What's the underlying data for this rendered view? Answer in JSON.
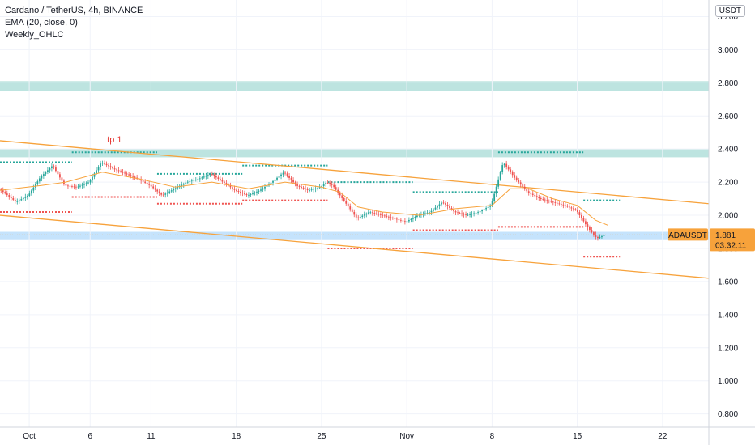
{
  "legend": {
    "title": "Cardano / TetherUS, 4h, BINANCE",
    "indicator_ema": "EMA (20, close, 0)",
    "indicator_weekly": "Weekly_OHLC"
  },
  "currency": "USDT",
  "chart_data": {
    "type": "candlestick",
    "symbol": "ADAUSDT",
    "price_axis": {
      "ticks": [
        "3.200",
        "3.000",
        "2.800",
        "2.600",
        "2.400",
        "2.200",
        "2.000",
        "1.800",
        "1.600",
        "1.400",
        "1.200",
        "1.000",
        "0.800"
      ],
      "range": [
        0.72,
        3.3
      ]
    },
    "time_axis": {
      "ticks": [
        {
          "label": "Oct",
          "day": 1
        },
        {
          "label": "6",
          "day": 6
        },
        {
          "label": "11",
          "day": 11
        },
        {
          "label": "18",
          "day": 18
        },
        {
          "label": "25",
          "day": 25
        },
        {
          "label": "Nov",
          "day": 32
        },
        {
          "label": "8",
          "day": 39
        },
        {
          "label": "15",
          "day": 46
        },
        {
          "label": "22",
          "day": 53
        }
      ],
      "range": [
        -1.4,
        56.8
      ]
    },
    "last_price": {
      "symbol": "ADAUSDT",
      "value": "1.881",
      "countdown": "03:32:11",
      "price": 1.881,
      "color": "#f7a23b"
    },
    "zones": [
      {
        "from": 2.75,
        "to": 2.81,
        "color": "#b2dfdb"
      },
      {
        "from": 2.35,
        "to": 2.4,
        "color": "#b2dfdb"
      },
      {
        "from": 1.85,
        "to": 1.9,
        "color": "#bbdefb"
      }
    ],
    "trendlines": [
      {
        "from": {
          "day": -1.4,
          "price": 2.45
        },
        "to": {
          "day": 56.8,
          "price": 2.07
        },
        "color": "#f7a23b"
      },
      {
        "from": {
          "day": -1.4,
          "price": 2.0
        },
        "to": {
          "day": 56.8,
          "price": 1.62
        },
        "color": "#f7a23b"
      }
    ],
    "weekly_levels": [
      {
        "from": -1.4,
        "to": 4.5,
        "price": 2.32,
        "kind": "high"
      },
      {
        "from": -1.4,
        "to": 4.5,
        "price": 2.02,
        "kind": "low"
      },
      {
        "from": 4.5,
        "to": 11.5,
        "price": 2.38,
        "kind": "high"
      },
      {
        "from": 4.5,
        "to": 11.5,
        "price": 2.11,
        "kind": "low"
      },
      {
        "from": 11.5,
        "to": 18.5,
        "price": 2.25,
        "kind": "high"
      },
      {
        "from": 11.5,
        "to": 18.5,
        "price": 2.07,
        "kind": "low"
      },
      {
        "from": 18.5,
        "to": 25.5,
        "price": 2.3,
        "kind": "high"
      },
      {
        "from": 18.5,
        "to": 25.5,
        "price": 2.09,
        "kind": "low"
      },
      {
        "from": 25.5,
        "to": 32.5,
        "price": 2.2,
        "kind": "high"
      },
      {
        "from": 25.5,
        "to": 32.5,
        "price": 1.8,
        "kind": "low"
      },
      {
        "from": 32.5,
        "to": 39.5,
        "price": 2.14,
        "kind": "high"
      },
      {
        "from": 32.5,
        "to": 39.5,
        "price": 1.91,
        "kind": "low"
      },
      {
        "from": 39.5,
        "to": 46.5,
        "price": 2.38,
        "kind": "high"
      },
      {
        "from": 39.5,
        "to": 46.5,
        "price": 1.93,
        "kind": "low"
      },
      {
        "from": 46.5,
        "to": 49.5,
        "price": 2.09,
        "kind": "high"
      },
      {
        "from": 46.5,
        "to": 49.5,
        "price": 1.75,
        "kind": "low"
      }
    ],
    "annotations": [
      {
        "text": "tp 1",
        "day": 8,
        "price": 2.44
      }
    ],
    "candles_path": [
      [
        -1.4,
        2.16
      ],
      [
        0.0,
        2.08
      ],
      [
        1.0,
        2.12
      ],
      [
        2.0,
        2.23
      ],
      [
        3.0,
        2.3
      ],
      [
        4.0,
        2.18
      ],
      [
        5.0,
        2.17
      ],
      [
        6.0,
        2.2
      ],
      [
        7.0,
        2.32
      ],
      [
        8.0,
        2.28
      ],
      [
        9.0,
        2.25
      ],
      [
        10.0,
        2.22
      ],
      [
        11.0,
        2.18
      ],
      [
        12.0,
        2.12
      ],
      [
        13.0,
        2.16
      ],
      [
        14.0,
        2.2
      ],
      [
        15.0,
        2.22
      ],
      [
        16.0,
        2.25
      ],
      [
        17.0,
        2.2
      ],
      [
        18.0,
        2.15
      ],
      [
        19.0,
        2.12
      ],
      [
        20.0,
        2.15
      ],
      [
        21.0,
        2.2
      ],
      [
        22.0,
        2.26
      ],
      [
        23.0,
        2.18
      ],
      [
        24.0,
        2.15
      ],
      [
        25.0,
        2.17
      ],
      [
        25.5,
        2.2
      ],
      [
        26.0,
        2.18
      ],
      [
        27.0,
        2.08
      ],
      [
        28.0,
        1.98
      ],
      [
        29.0,
        2.02
      ],
      [
        30.0,
        2.0
      ],
      [
        31.0,
        1.98
      ],
      [
        32.0,
        1.96
      ],
      [
        33.0,
        2.0
      ],
      [
        34.0,
        2.02
      ],
      [
        35.0,
        2.08
      ],
      [
        36.0,
        2.02
      ],
      [
        37.0,
        2.0
      ],
      [
        38.0,
        2.02
      ],
      [
        39.0,
        2.06
      ],
      [
        40.0,
        2.32
      ],
      [
        41.0,
        2.22
      ],
      [
        42.0,
        2.14
      ],
      [
        43.0,
        2.1
      ],
      [
        44.0,
        2.08
      ],
      [
        45.0,
        2.06
      ],
      [
        46.0,
        2.03
      ],
      [
        47.0,
        1.92
      ],
      [
        47.7,
        1.86
      ],
      [
        48.3,
        1.88
      ]
    ],
    "ema_path": [
      [
        -1.4,
        2.15
      ],
      [
        2.0,
        2.18
      ],
      [
        4.0,
        2.2
      ],
      [
        7.0,
        2.26
      ],
      [
        10.0,
        2.22
      ],
      [
        13.0,
        2.17
      ],
      [
        16.0,
        2.2
      ],
      [
        19.0,
        2.16
      ],
      [
        22.0,
        2.2
      ],
      [
        25.0,
        2.17
      ],
      [
        26.5,
        2.14
      ],
      [
        28.0,
        2.05
      ],
      [
        30.0,
        2.02
      ],
      [
        33.0,
        2.0
      ],
      [
        36.0,
        2.04
      ],
      [
        39.0,
        2.06
      ],
      [
        40.5,
        2.16
      ],
      [
        42.0,
        2.16
      ],
      [
        44.0,
        2.1
      ],
      [
        46.0,
        2.06
      ],
      [
        47.5,
        1.97
      ],
      [
        48.5,
        1.94
      ]
    ]
  }
}
